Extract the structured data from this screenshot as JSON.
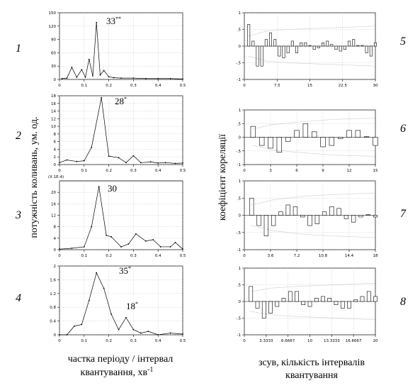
{
  "panel_labels": [
    "1",
    "2",
    "3",
    "4",
    "5",
    "6",
    "7",
    "8"
  ],
  "left_ylabel": "потужність коливань, ум. од.",
  "right_ylabel": "коефіцієнт кореляції",
  "left_xlabel": {
    "lines": [
      "частка періоду / інтервал",
      "квантування, хв"
    ],
    "sup": "-1"
  },
  "right_xlabel": {
    "lines": [
      "зсув, кількість інтервалів",
      "квантування"
    ]
  },
  "chart_data": [
    {
      "type": "line",
      "x": [
        0.01,
        0.03,
        0.05,
        0.07,
        0.09,
        0.105,
        0.12,
        0.135,
        0.15,
        0.165,
        0.18,
        0.2,
        0.22,
        0.25,
        0.3,
        0.35,
        0.4,
        0.45,
        0.5
      ],
      "values": [
        2,
        3,
        27,
        5,
        22,
        5,
        45,
        8,
        128,
        10,
        20,
        6,
        4,
        3,
        3,
        2,
        2,
        2,
        1
      ],
      "xlim": [
        0,
        0.5
      ],
      "ylim": [
        0,
        150
      ],
      "xticks": [
        0,
        0.1,
        0.2,
        0.3,
        0.4,
        0.5
      ],
      "yticks": [
        0,
        30,
        60,
        90,
        120,
        150
      ],
      "annotations": [
        {
          "text": "33",
          "mark": "**"
        }
      ],
      "grid": true
    },
    {
      "type": "line",
      "x": [
        0,
        0.03,
        0.07,
        0.1,
        0.13,
        0.17,
        0.2,
        0.24,
        0.27,
        0.3,
        0.33,
        0.37,
        0.4,
        0.43,
        0.47,
        0.5
      ],
      "values": [
        0.5,
        1.2,
        0.8,
        1,
        4.5,
        17.5,
        2.2,
        1.8,
        0.5,
        2.3,
        0.5,
        0.7,
        0.4,
        0.5,
        0.3,
        0.4
      ],
      "xlim": [
        0,
        0.5
      ],
      "ylim": [
        0,
        18
      ],
      "xticks": [
        0,
        0.1,
        0.2,
        0.3,
        0.4,
        0.5
      ],
      "yticks": [
        0,
        2,
        4,
        6,
        8,
        10,
        12,
        14,
        16,
        18
      ],
      "annotations": [
        {
          "text": "28",
          "mark": "*"
        }
      ],
      "grid": true
    },
    {
      "type": "line",
      "x": [
        0,
        0.05,
        0.1,
        0.13,
        0.16,
        0.19,
        0.21,
        0.25,
        0.28,
        0.31,
        0.35,
        0.38,
        0.41,
        0.45,
        0.47,
        0.5
      ],
      "values": [
        0.2,
        0.5,
        1,
        8,
        22,
        5,
        4.5,
        1,
        2,
        5.5,
        3,
        3.5,
        1,
        1,
        2.5,
        0.2
      ],
      "xlim": [
        0,
        0.5
      ],
      "ylim": [
        0,
        24
      ],
      "xticks": [
        0,
        0.1,
        0.2,
        0.3,
        0.4,
        0.5
      ],
      "yticks": [
        0,
        4,
        8,
        12,
        16,
        20
      ],
      "ylabel_note": "(X 1E-4)",
      "annotations": [
        {
          "text": "30",
          "mark": ""
        }
      ],
      "grid": true
    },
    {
      "type": "line",
      "x": [
        0,
        0.03,
        0.06,
        0.09,
        0.12,
        0.15,
        0.18,
        0.21,
        0.24,
        0.27,
        0.3,
        0.33,
        0.36,
        0.4,
        0.45,
        0.5
      ],
      "values": [
        0,
        0,
        0.25,
        0.3,
        1,
        1.8,
        1.35,
        0.6,
        0.15,
        0.5,
        0.15,
        0.05,
        0.1,
        0,
        0.05,
        0.02
      ],
      "xlim": [
        0,
        0.5
      ],
      "ylim": [
        0,
        2
      ],
      "xticks": [
        0,
        0.1,
        0.2,
        0.3,
        0.4,
        0.5
      ],
      "yticks": [
        0,
        0.4,
        0.8,
        1.2,
        1.6,
        2
      ],
      "annotations": [
        {
          "text": "35",
          "mark": "*"
        },
        {
          "text": "18",
          "mark": "*"
        }
      ],
      "grid": true
    },
    {
      "type": "bar",
      "x": [
        1,
        2,
        3,
        4,
        5,
        6,
        7,
        8,
        9,
        10,
        11,
        12,
        13,
        14,
        15,
        16,
        17,
        18,
        19,
        20,
        21,
        22,
        23,
        24,
        25,
        26,
        27,
        28,
        29,
        30
      ],
      "values": [
        0.65,
        0.15,
        -0.6,
        -0.6,
        0.2,
        0.4,
        0.2,
        -0.3,
        -0.35,
        -0.2,
        0.15,
        -0.2,
        0.1,
        0.1,
        0.02,
        -0.1,
        -0.05,
        0.1,
        0.15,
        0.05,
        -0.1,
        -0.15,
        -0.1,
        0.15,
        0.2,
        0.02,
        0.02,
        -0.2,
        -0.3,
        0.1
      ],
      "conf_x": [
        1,
        5,
        10,
        20,
        30
      ],
      "conf_upper": [
        0.3,
        0.45,
        0.5,
        0.55,
        0.6
      ],
      "conf_lower": [
        -0.3,
        -0.45,
        -0.5,
        -0.55,
        -0.6
      ],
      "xlim": [
        0,
        30
      ],
      "ylim": [
        -1,
        1
      ],
      "xticks": [
        0,
        7.5,
        15,
        22.5,
        30
      ],
      "yticks": [
        {
          "value": -1,
          "label": "-1"
        },
        {
          "value": -0.5,
          "label": "-.5"
        },
        0,
        {
          "value": 0.5,
          "label": ".5"
        },
        1
      ],
      "grid": true
    },
    {
      "type": "bar",
      "x": [
        1,
        2,
        3,
        4,
        5,
        6,
        7,
        8,
        9,
        10,
        11,
        12,
        13,
        14,
        15
      ],
      "values": [
        0.4,
        -0.3,
        -0.4,
        -0.55,
        -0.15,
        0.25,
        0.5,
        0.2,
        -0.35,
        -0.3,
        -0.05,
        0.25,
        0.25,
        0.02,
        -0.3
      ],
      "conf_x": [
        1,
        3,
        6,
        10,
        15
      ],
      "conf_upper": [
        0.3,
        0.45,
        0.55,
        0.65,
        0.7
      ],
      "conf_lower": [
        -0.3,
        -0.45,
        -0.55,
        -0.65,
        -0.7
      ],
      "xlim": [
        0,
        15
      ],
      "ylim": [
        -1,
        1
      ],
      "xticks": [
        0,
        3,
        6,
        9,
        12,
        15
      ],
      "yticks": [
        {
          "value": -1,
          "label": "-1"
        },
        {
          "value": -0.5,
          "label": "-.5"
        },
        0,
        {
          "value": 0.5,
          "label": ".5"
        },
        1
      ],
      "grid": true
    },
    {
      "type": "bar",
      "x": [
        1,
        2,
        3,
        4,
        5,
        6,
        7,
        8,
        9,
        10,
        11,
        12,
        13,
        14,
        15,
        16,
        17,
        18
      ],
      "values": [
        0.5,
        -0.3,
        -0.6,
        -0.3,
        0.1,
        0.3,
        0.25,
        -0.05,
        -0.3,
        -0.25,
        0.1,
        0.25,
        0.2,
        -0.1,
        -0.2,
        -0.05,
        0.02,
        -0.05
      ],
      "conf_x": [
        1,
        4,
        8,
        12,
        18
      ],
      "conf_upper": [
        0.3,
        0.45,
        0.55,
        0.6,
        0.65
      ],
      "conf_lower": [
        -0.3,
        -0.45,
        -0.55,
        -0.6,
        -0.65
      ],
      "xlim": [
        0,
        18
      ],
      "ylim": [
        -1,
        1
      ],
      "xticks": [
        0,
        3.6,
        7.2,
        10.8,
        14.4,
        18
      ],
      "yticks": [
        {
          "value": -1,
          "label": "-1"
        },
        {
          "value": -0.5,
          "label": "-.5"
        },
        0,
        {
          "value": 0.5,
          "label": ".5"
        },
        1
      ],
      "grid": true
    },
    {
      "type": "bar",
      "x": [
        1,
        2,
        3,
        4,
        5,
        6,
        7,
        8,
        9,
        10,
        11,
        12,
        13,
        14,
        15,
        16,
        17,
        18,
        19,
        20
      ],
      "values": [
        0.45,
        -0.2,
        -0.5,
        -0.35,
        -0.15,
        0.1,
        0.3,
        0.3,
        -0.1,
        -0.15,
        0.1,
        0.15,
        0.1,
        -0.1,
        -0.2,
        -0.2,
        0.05,
        0.15,
        0.3,
        0.15
      ],
      "conf_x": [
        1,
        4,
        8,
        14,
        20
      ],
      "conf_upper": [
        0.3,
        0.4,
        0.45,
        0.5,
        0.55
      ],
      "conf_lower": [
        -0.3,
        -0.4,
        -0.45,
        -0.5,
        -0.55
      ],
      "xlim": [
        0,
        20
      ],
      "ylim": [
        -1,
        1
      ],
      "xticks": [
        0,
        3.3333,
        6.6667,
        10,
        13.3333,
        16.6667,
        20
      ],
      "yticks": [
        {
          "value": -1,
          "label": "-1"
        },
        {
          "value": -0.5,
          "label": "-.5"
        },
        0,
        {
          "value": 0.5,
          "label": ".5"
        },
        1
      ],
      "grid": true
    }
  ]
}
